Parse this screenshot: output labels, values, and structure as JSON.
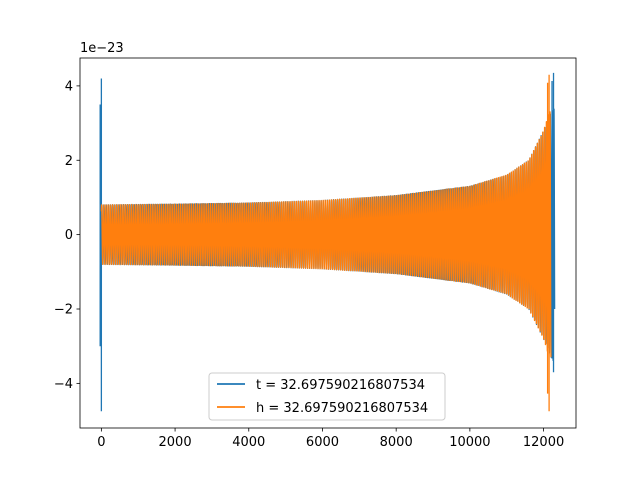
{
  "chart_data": {
    "type": "line",
    "title": "",
    "xlabel": "",
    "ylabel": "",
    "offset_text": "1e−23",
    "scale_exponent": -23,
    "xlim": [
      -580,
      12880
    ],
    "ylim": [
      -5.2,
      4.75
    ],
    "x_ticks": [
      0,
      2000,
      4000,
      6000,
      8000,
      10000,
      12000
    ],
    "x_tick_labels": [
      "0",
      "2000",
      "4000",
      "6000",
      "8000",
      "10000",
      "12000"
    ],
    "y_ticks": [
      -4,
      -2,
      0,
      2,
      4
    ],
    "y_tick_labels": [
      "−4",
      "−2",
      "0",
      "2",
      "4"
    ],
    "grid": false,
    "legend_position": "lower center",
    "series": [
      {
        "name": "t = 32.697590216807534",
        "color": "#1f77b4",
        "x_range": [
          0,
          12300
        ],
        "approx_cycles": 210,
        "envelope": [
          [
            0,
            0.8
          ],
          [
            2000,
            0.82
          ],
          [
            4000,
            0.85
          ],
          [
            6000,
            0.92
          ],
          [
            8000,
            1.05
          ],
          [
            10000,
            1.3
          ],
          [
            11000,
            1.6
          ],
          [
            11600,
            2.0
          ],
          [
            12000,
            2.8
          ],
          [
            12250,
            3.4
          ]
        ],
        "start_spike": {
          "x": 0,
          "min": -4.75,
          "max": 4.2
        },
        "end_spike": {
          "x": 12270,
          "min": -3.7,
          "max": 4.35
        }
      },
      {
        "name": "h = 32.697590216807534",
        "color": "#ff7f0e",
        "x_range": [
          0,
          12200
        ],
        "approx_cycles": 210,
        "envelope": [
          [
            0,
            0.8
          ],
          [
            2000,
            0.82
          ],
          [
            4000,
            0.85
          ],
          [
            6000,
            0.92
          ],
          [
            8000,
            1.05
          ],
          [
            10000,
            1.3
          ],
          [
            11000,
            1.6
          ],
          [
            11600,
            2.0
          ],
          [
            12000,
            2.8
          ],
          [
            12150,
            3.3
          ]
        ],
        "end_spike": {
          "x": 12150,
          "min": -4.75,
          "max": 4.3
        }
      }
    ]
  }
}
